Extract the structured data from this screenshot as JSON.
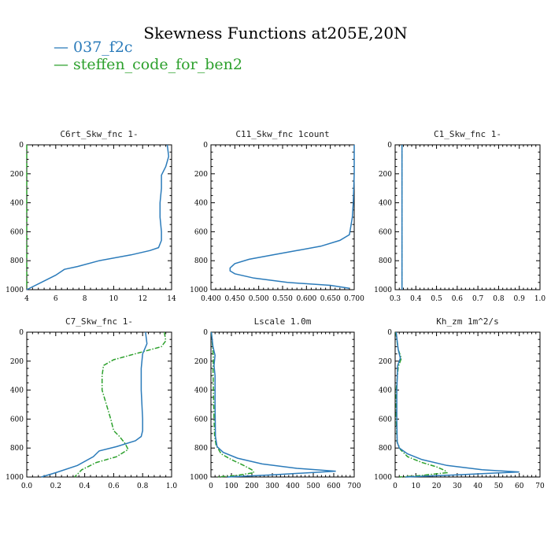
{
  "title": "Skewness Functions at205E,20N",
  "legend": [
    {
      "label": "— 037_f2c",
      "color": "#2b7bba"
    },
    {
      "label": "— steffen_code_for_ben2",
      "color": "#2ca02c"
    }
  ],
  "colors": {
    "series1": "#2b7bba",
    "series2": "#2ca02c",
    "axis": "#000000"
  },
  "chart_data": [
    {
      "type": "line",
      "title": "C6rt_Skw_fnc  1-",
      "xlim": [
        4,
        14
      ],
      "xticks": [
        4,
        6,
        8,
        10,
        12,
        14
      ],
      "xtick_labels": [
        "4",
        "6",
        "8",
        "10",
        "12",
        "14"
      ],
      "ylim": [
        1000,
        0
      ],
      "yticks": [
        0,
        200,
        400,
        600,
        800,
        1000
      ],
      "ytick_labels": [
        "0",
        "200",
        "400",
        "600",
        "800",
        "1000"
      ],
      "series": [
        {
          "name": "037_f2c",
          "style": "solid",
          "x": [
            13.7,
            13.8,
            13.6,
            13.3,
            13.3,
            13.2,
            13.2,
            13.3,
            13.3,
            13.1,
            12.5,
            11.2,
            9.0,
            7.5,
            6.6,
            6.0,
            5.0,
            4.0
          ],
          "y": [
            0,
            80,
            150,
            210,
            300,
            400,
            500,
            600,
            660,
            710,
            730,
            760,
            800,
            840,
            860,
            900,
            950,
            1000
          ]
        },
        {
          "name": "steffen_code_for_ben2",
          "style": "dashdot",
          "x": [
            4.0,
            4.0
          ],
          "y": [
            0,
            1000
          ]
        }
      ]
    },
    {
      "type": "line",
      "title": "C11_Skw_fnc  1count",
      "xlim": [
        0.4,
        0.7
      ],
      "xticks": [
        0.4,
        0.45,
        0.5,
        0.55,
        0.6,
        0.65,
        0.7
      ],
      "xtick_labels": [
        "0.400",
        "0.450",
        "0.500",
        "0.550",
        "0.600",
        "0.650",
        "0.700"
      ],
      "ylim": [
        1000,
        0
      ],
      "yticks": [
        0,
        200,
        400,
        600,
        800,
        1000
      ],
      "ytick_labels": [
        "0",
        "200",
        "400",
        "600",
        "800",
        "1000"
      ],
      "series": [
        {
          "name": "037_f2c",
          "style": "solid",
          "x": [
            0.7,
            0.7,
            0.698,
            0.696,
            0.693,
            0.69,
            0.67,
            0.63,
            0.58,
            0.53,
            0.48,
            0.45,
            0.44,
            0.44,
            0.45,
            0.49,
            0.56,
            0.65,
            0.69
          ],
          "y": [
            0,
            200,
            400,
            500,
            560,
            620,
            660,
            700,
            730,
            760,
            790,
            820,
            850,
            870,
            890,
            920,
            950,
            970,
            990
          ]
        }
      ]
    },
    {
      "type": "line",
      "title": "C1_Skw_fnc  1-",
      "xlim": [
        0.3,
        1.0
      ],
      "xticks": [
        0.3,
        0.4,
        0.5,
        0.6,
        0.7,
        0.8,
        0.9,
        1.0
      ],
      "xtick_labels": [
        "0.3",
        "0.4",
        "0.5",
        "0.6",
        "0.7",
        "0.8",
        "0.9",
        "1.0"
      ],
      "ylim": [
        1000,
        0
      ],
      "yticks": [
        0,
        200,
        400,
        600,
        800,
        1000
      ],
      "ytick_labels": [
        "0",
        "200",
        "400",
        "600",
        "800",
        "1000"
      ],
      "series": [
        {
          "name": "037_f2c",
          "style": "solid",
          "x": [
            0.333,
            0.333
          ],
          "y": [
            0,
            1000
          ]
        },
        {
          "name": "steffen_code_for_ben2",
          "style": "dashdot",
          "x": [
            0.333,
            0.333
          ],
          "y": [
            0,
            1000
          ]
        }
      ]
    },
    {
      "type": "line",
      "title": "C7_Skw_fnc  1-",
      "xlim": [
        0.0,
        1.0
      ],
      "xticks": [
        0.0,
        0.2,
        0.4,
        0.6,
        0.8,
        1.0
      ],
      "xtick_labels": [
        "0.0",
        "0.2",
        "0.4",
        "0.6",
        "0.8",
        "1.0"
      ],
      "ylim": [
        1000,
        0
      ],
      "yticks": [
        0,
        200,
        400,
        600,
        800,
        1000
      ],
      "ytick_labels": [
        "0",
        "200",
        "400",
        "600",
        "800",
        "1000"
      ],
      "series": [
        {
          "name": "037_f2c",
          "style": "solid",
          "x": [
            0.82,
            0.83,
            0.8,
            0.79,
            0.79,
            0.8,
            0.8,
            0.79,
            0.75,
            0.62,
            0.5,
            0.46,
            0.35,
            0.2,
            0.1
          ],
          "y": [
            0,
            80,
            150,
            250,
            400,
            600,
            680,
            720,
            750,
            790,
            820,
            860,
            920,
            970,
            1000
          ]
        },
        {
          "name": "steffen_code_for_ben2",
          "style": "dashdot",
          "x": [
            0.95,
            0.96,
            0.93,
            0.6,
            0.53,
            0.52,
            0.52,
            0.55,
            0.58,
            0.6,
            0.64,
            0.68,
            0.7,
            0.62,
            0.48,
            0.38,
            0.33
          ],
          "y": [
            0,
            60,
            100,
            190,
            230,
            300,
            400,
            500,
            600,
            680,
            720,
            770,
            810,
            860,
            900,
            950,
            1000
          ]
        }
      ]
    },
    {
      "type": "line",
      "title": "Lscale  1.0m",
      "xlim": [
        0,
        700
      ],
      "xticks": [
        0,
        100,
        200,
        300,
        400,
        500,
        600,
        700
      ],
      "xtick_labels": [
        "0",
        "100",
        "200",
        "300",
        "400",
        "500",
        "600",
        "700"
      ],
      "ylim": [
        1000,
        0
      ],
      "yticks": [
        0,
        200,
        400,
        600,
        800,
        1000
      ],
      "ytick_labels": [
        "0",
        "200",
        "400",
        "600",
        "800",
        "1000"
      ],
      "series": [
        {
          "name": "037_f2c",
          "style": "solid",
          "x": [
            2,
            10,
            20,
            15,
            20,
            20,
            22,
            30,
            60,
            130,
            250,
            420,
            610,
            300,
            80
          ],
          "y": [
            0,
            100,
            160,
            230,
            300,
            500,
            720,
            790,
            830,
            870,
            910,
            940,
            960,
            985,
            1000
          ]
        },
        {
          "name": "steffen_code_for_ben2",
          "style": "dashdot",
          "x": [
            2,
            8,
            12,
            10,
            12,
            15,
            18,
            25,
            50,
            100,
            160,
            200,
            210,
            120,
            30
          ],
          "y": [
            0,
            100,
            180,
            250,
            400,
            600,
            720,
            780,
            840,
            880,
            920,
            950,
            970,
            990,
            1000
          ]
        }
      ]
    },
    {
      "type": "line",
      "title": "Kh_zm  1m^2/s",
      "xlim": [
        0,
        70
      ],
      "xticks": [
        0,
        10,
        20,
        30,
        40,
        50,
        60,
        70
      ],
      "xtick_labels": [
        "0",
        "10",
        "20",
        "30",
        "40",
        "50",
        "60",
        "70"
      ],
      "ylim": [
        1000,
        0
      ],
      "yticks": [
        0,
        200,
        400,
        600,
        800,
        1000
      ],
      "ytick_labels": [
        "0",
        "200",
        "400",
        "600",
        "800",
        "1000"
      ],
      "series": [
        {
          "name": "037_f2c",
          "style": "solid",
          "x": [
            0.5,
            1.5,
            2.5,
            1.2,
            0.8,
            0.8,
            1.0,
            2.0,
            6.0,
            13.0,
            25.0,
            42.0,
            60.0,
            30.0,
            5.0
          ],
          "y": [
            0,
            120,
            180,
            230,
            400,
            600,
            760,
            800,
            840,
            880,
            920,
            950,
            965,
            985,
            1000
          ]
        },
        {
          "name": "steffen_code_for_ben2",
          "style": "dashdot",
          "x": [
            0.3,
            1.5,
            3.0,
            1.5,
            0.5,
            0.5,
            1.0,
            2.5,
            6.0,
            13.0,
            20.0,
            24.0,
            25.0,
            12.0,
            2.0
          ],
          "y": [
            0,
            120,
            180,
            240,
            400,
            600,
            760,
            810,
            860,
            900,
            930,
            955,
            970,
            990,
            1000
          ]
        }
      ]
    }
  ]
}
